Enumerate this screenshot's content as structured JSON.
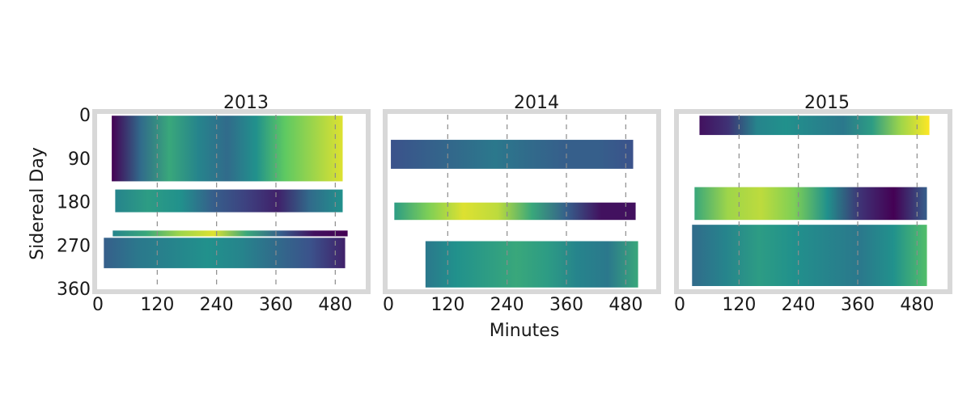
{
  "colors": {
    "frame": "#d8d8d8",
    "grid": "#8c8c8c",
    "colormap": [
      "#440154",
      "#3b528b",
      "#21918c",
      "#5ec962",
      "#fde725"
    ]
  },
  "chart_data": [
    {
      "type": "heatmap",
      "title": "2013",
      "xlabel": "",
      "ylabel": "Sidereal Day",
      "xlim": [
        0,
        540
      ],
      "ylim": [
        360,
        0
      ],
      "xticks": [
        "0",
        "120",
        "240",
        "360",
        "480"
      ],
      "yticks": [
        "0",
        "90",
        "180",
        "270",
        "360"
      ],
      "x_tick_values": [
        0,
        120,
        240,
        360,
        480
      ],
      "y_tick_values": [
        0,
        90,
        180,
        270,
        360
      ],
      "grid": "vertical dashed lines at x ticks",
      "blocks": [
        {
          "day_start": 2,
          "day_end": 138,
          "min_start": 28,
          "min_end": 495,
          "pattern": [
            0.0,
            0.35,
            0.6,
            0.45,
            0.35,
            0.5,
            0.75,
            0.85,
            0.95
          ]
        },
        {
          "day_start": 155,
          "day_end": 202,
          "min_start": 35,
          "min_end": 495,
          "pattern": [
            0.45,
            0.55,
            0.5,
            0.3,
            0.2,
            0.1,
            0.35,
            0.5
          ]
        },
        {
          "day_start": 240,
          "day_end": 252,
          "min_start": 30,
          "min_end": 505,
          "pattern": [
            0.45,
            0.6,
            0.85,
            0.95,
            0.6,
            0.3,
            0.05,
            0.0
          ]
        },
        {
          "day_start": 255,
          "day_end": 318,
          "min_start": 12,
          "min_end": 500,
          "pattern": [
            0.3,
            0.4,
            0.45,
            0.5,
            0.45,
            0.35,
            0.25,
            0.1
          ]
        }
      ]
    },
    {
      "type": "heatmap",
      "title": "2014",
      "xlabel": "Minutes",
      "ylabel": "",
      "xlim": [
        0,
        540
      ],
      "ylim": [
        360,
        0
      ],
      "xticks": [
        "0",
        "120",
        "240",
        "360",
        "480"
      ],
      "x_tick_values": [
        0,
        120,
        240,
        360,
        480
      ],
      "grid": "vertical dashed lines at x ticks",
      "blocks": [
        {
          "day_start": 52,
          "day_end": 112,
          "min_start": 5,
          "min_end": 495,
          "pattern": [
            0.25,
            0.3,
            0.35,
            0.4,
            0.35,
            0.3,
            0.3,
            0.25
          ]
        },
        {
          "day_start": 182,
          "day_end": 218,
          "min_start": 12,
          "min_end": 500,
          "pattern": [
            0.55,
            0.8,
            0.95,
            0.9,
            0.6,
            0.3,
            0.05,
            0.05
          ]
        },
        {
          "day_start": 262,
          "day_end": 358,
          "min_start": 75,
          "min_end": 505,
          "pattern": [
            0.4,
            0.5,
            0.55,
            0.6,
            0.55,
            0.45,
            0.4,
            0.6
          ]
        }
      ]
    },
    {
      "type": "heatmap",
      "title": "2015",
      "xlabel": "",
      "ylabel": "",
      "xlim": [
        0,
        540
      ],
      "ylim": [
        360,
        0
      ],
      "xticks": [
        "0",
        "120",
        "240",
        "360",
        "480"
      ],
      "x_tick_values": [
        0,
        120,
        240,
        360,
        480
      ],
      "grid": "vertical dashed lines at x ticks",
      "blocks": [
        {
          "day_start": 2,
          "day_end": 42,
          "min_start": 40,
          "min_end": 505,
          "pattern": [
            0.05,
            0.15,
            0.45,
            0.5,
            0.45,
            0.4,
            0.55,
            0.85,
            1.0
          ]
        },
        {
          "day_start": 150,
          "day_end": 218,
          "min_start": 30,
          "min_end": 500,
          "pattern": [
            0.6,
            0.85,
            0.9,
            0.8,
            0.5,
            0.15,
            0.0,
            0.3
          ]
        },
        {
          "day_start": 228,
          "day_end": 355,
          "min_start": 25,
          "min_end": 500,
          "pattern": [
            0.35,
            0.45,
            0.55,
            0.5,
            0.45,
            0.4,
            0.5,
            0.7
          ]
        }
      ]
    }
  ]
}
